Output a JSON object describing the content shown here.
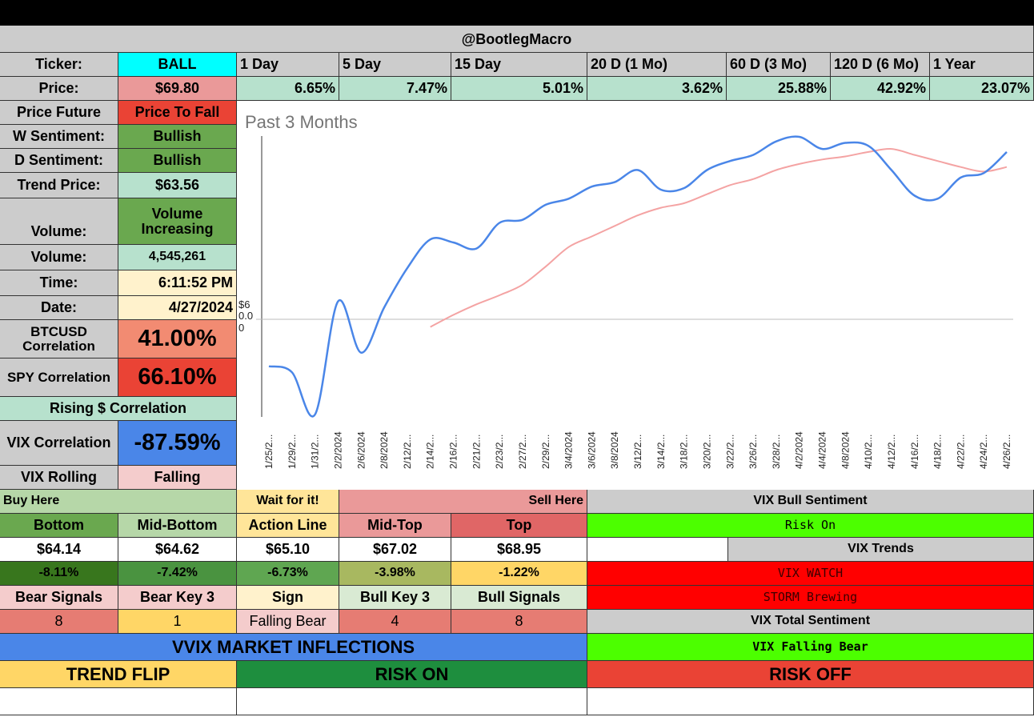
{
  "header": {
    "handle": "@BootlegMacro"
  },
  "ticker": {
    "label": "Ticker:",
    "value": "BALL"
  },
  "periods": [
    "1 Day",
    "5 Day",
    "15 Day",
    "20 D (1 Mo)",
    "60 D (3 Mo)",
    "120 D (6 Mo)",
    "1 Year"
  ],
  "price": {
    "label": "Price:",
    "value": "$69.80"
  },
  "returns": [
    "6.65%",
    "7.47%",
    "5.01%",
    "3.62%",
    "25.88%",
    "42.92%",
    "23.07%"
  ],
  "stats": {
    "price_future": {
      "label": "Price Future",
      "value": "Price To Fall"
    },
    "w_sentiment": {
      "label": "W Sentiment:",
      "value": "Bullish"
    },
    "d_sentiment": {
      "label": "D Sentiment:",
      "value": "Bullish"
    },
    "trend_price": {
      "label": "Trend Price:",
      "value": "$63.56"
    },
    "volume_trend": {
      "label": "Volume:",
      "value": "Volume Increasing"
    },
    "volume": {
      "label": "Volume:",
      "value": "4,545,261"
    },
    "time": {
      "label": "Time:",
      "value": "6:11:52 PM"
    },
    "date": {
      "label": "Date:",
      "value": "4/27/2024"
    },
    "btc_corr": {
      "label": "BTCUSD Correlation",
      "value": "41.00%"
    },
    "spy_corr": {
      "label": "SPY Correlation",
      "value": "66.10%"
    },
    "rising_corr": {
      "label": "Rising $ Correlation"
    },
    "vix_corr": {
      "label": "VIX Correlation",
      "value": "-87.59%"
    },
    "vix_rolling": {
      "label": "VIX Rolling",
      "value": "Falling"
    }
  },
  "chart_data": {
    "type": "line",
    "title": "Past 3 Months",
    "y_tick_label": "$60.00",
    "x": [
      "1/25/2...",
      "1/29/2...",
      "1/31/2...",
      "2/2/2024",
      "2/6/2024",
      "2/8/2024",
      "2/12/2...",
      "2/14/2...",
      "2/16/2...",
      "2/21/2...",
      "2/23/2...",
      "2/27/2...",
      "2/29/2...",
      "3/4/2024",
      "3/6/2024",
      "3/8/2024",
      "3/12/2...",
      "3/14/2...",
      "3/18/2...",
      "3/20/2...",
      "3/22/2...",
      "3/26/2...",
      "3/28/2...",
      "4/2/2024",
      "4/4/2024",
      "4/8/2024",
      "4/10/2...",
      "4/12/2...",
      "4/16/2...",
      "4/18/2...",
      "4/22/2...",
      "4/24/2...",
      "4/26/2..."
    ],
    "series": [
      {
        "name": "",
        "color": "#4a86e8",
        "values": [
          55.6,
          55.2,
          52.4,
          59.9,
          56.5,
          59.5,
          62.1,
          64.0,
          63.8,
          63.4,
          65.1,
          65.3,
          66.3,
          66.7,
          67.5,
          67.8,
          68.6,
          67.3,
          67.4,
          68.6,
          69.2,
          69.6,
          70.5,
          70.8,
          70.0,
          70.4,
          70.2,
          68.6,
          66.9,
          66.7,
          68.1,
          68.4,
          69.8
        ]
      },
      {
        "name": "",
        "color": "#f4a3a3",
        "values": [
          null,
          null,
          null,
          null,
          null,
          null,
          null,
          58.2,
          59.0,
          59.7,
          60.3,
          61.0,
          62.2,
          63.5,
          64.2,
          64.9,
          65.6,
          66.1,
          66.4,
          67.0,
          67.6,
          68.0,
          68.6,
          69.0,
          69.3,
          69.5,
          69.8,
          70.0,
          69.6,
          69.2,
          68.8,
          68.5,
          68.8
        ]
      }
    ]
  },
  "levels": {
    "buy_here": "Buy Here",
    "wait": "Wait for it!",
    "sell_here": "Sell Here",
    "headers": [
      "Bottom",
      "Mid-Bottom",
      "Action Line",
      "Mid-Top",
      "Top"
    ],
    "prices": [
      "$64.14",
      "$64.62",
      "$65.10",
      "$67.02",
      "$68.95"
    ],
    "pcts": [
      "-8.11%",
      "-7.42%",
      "-6.73%",
      "-3.98%",
      "-1.22%"
    ]
  },
  "signals": {
    "headers": [
      "Bear Signals",
      "Bear Key 3",
      "Sign",
      "Bull Key 3",
      "Bull Signals"
    ],
    "values": [
      "8",
      "1",
      "Falling Bear",
      "4",
      "8"
    ]
  },
  "vix": {
    "bull_sentiment_label": "VIX Bull Sentiment",
    "bull_sentiment_value": "Risk On",
    "trends_label": "VIX Trends",
    "watch": "VIX WATCH",
    "storm": "STORM Brewing",
    "total_label": "VIX Total Sentiment",
    "total_value": "VIX Falling Bear"
  },
  "vvix": {
    "title": "VVIX MARKET INFLECTIONS",
    "trend_flip": "TREND FLIP",
    "risk_on": "RISK ON",
    "risk_off": "RISK OFF"
  },
  "colors": {
    "cyan": "#00ffff",
    "salmon": "#ea9999",
    "green": "#6aa84f",
    "mint": "#b7e1cd",
    "red": "#ea4335",
    "blue": "#4a86e8",
    "yellow": "#ffe599",
    "lime": "#4cff00",
    "bright_red": "#ff0000",
    "gray": "#cccccc"
  }
}
